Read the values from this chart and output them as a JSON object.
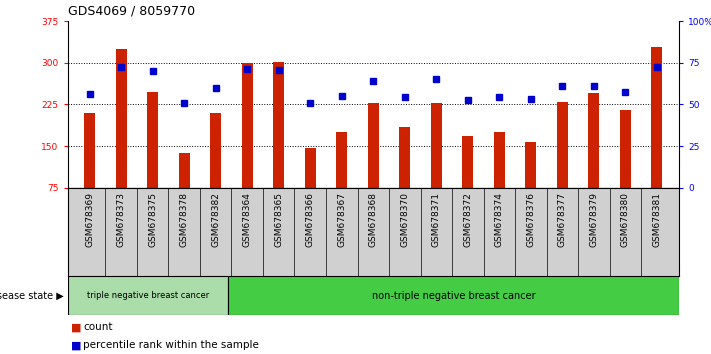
{
  "title": "GDS4069 / 8059770",
  "samples": [
    "GSM678369",
    "GSM678373",
    "GSM678375",
    "GSM678378",
    "GSM678382",
    "GSM678364",
    "GSM678365",
    "GSM678366",
    "GSM678367",
    "GSM678368",
    "GSM678370",
    "GSM678371",
    "GSM678372",
    "GSM678374",
    "GSM678376",
    "GSM678377",
    "GSM678379",
    "GSM678380",
    "GSM678381"
  ],
  "bar_values": [
    210,
    325,
    248,
    138,
    210,
    300,
    302,
    147,
    175,
    228,
    185,
    227,
    168,
    175,
    158,
    230,
    245,
    215,
    328
  ],
  "blue_values": [
    243,
    293,
    286,
    228,
    255,
    288,
    287,
    228,
    240,
    268,
    238,
    270,
    233,
    238,
    235,
    258,
    258,
    248,
    293
  ],
  "bar_bottom": 75,
  "ylim_left": [
    75,
    375
  ],
  "yticks_left": [
    75,
    150,
    225,
    300,
    375
  ],
  "ylim_right": [
    0,
    100
  ],
  "yticks_right": [
    0,
    25,
    50,
    75,
    100
  ],
  "right_tick_labels": [
    "0",
    "25",
    "50",
    "75",
    "100%"
  ],
  "bar_color": "#cc2200",
  "blue_color": "#0000cc",
  "group1_label": "triple negative breast cancer",
  "group2_label": "non-triple negative breast cancer",
  "group1_count": 5,
  "group2_count": 14,
  "legend_count_label": "count",
  "legend_pct_label": "percentile rank within the sample",
  "disease_state_label": "disease state",
  "group1_bg": "#aaddaa",
  "group2_bg": "#44cc44",
  "xtick_bg": "#d0d0d0",
  "title_fontsize": 9,
  "tick_fontsize": 6.5,
  "label_fontsize": 7.5
}
